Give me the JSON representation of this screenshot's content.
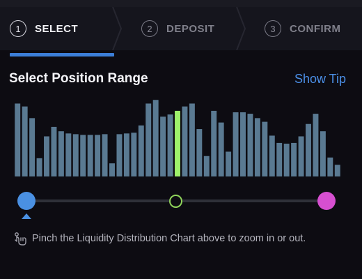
{
  "steps": [
    {
      "number": "1",
      "label": "SELECT",
      "active": true
    },
    {
      "number": "2",
      "label": "DEPOSIT",
      "active": false
    },
    {
      "number": "3",
      "label": "CONFIRM",
      "active": false
    }
  ],
  "header": {
    "title": "Select Position Range",
    "tip_label": "Show Tip"
  },
  "hint": {
    "text": "Pinch the Liquidity Distribution Chart above to zoom in or out.",
    "icon": "pinch-gesture-icon"
  },
  "colors": {
    "bar": "#5a7a92",
    "bar_selected": "#9ef06a",
    "accent": "#3c7fd8",
    "lower_handle": "#4a90e2",
    "upper_handle": "#d64fd0",
    "current_price_marker": "#8fd35a"
  },
  "chart_data": {
    "type": "bar",
    "values": [
      100,
      96,
      80,
      25,
      55,
      68,
      62,
      59,
      58,
      57,
      57,
      57,
      58,
      18,
      58,
      59,
      60,
      70,
      100,
      105,
      82,
      85,
      90,
      96,
      100,
      65,
      28,
      90,
      74,
      34,
      88,
      88,
      86,
      80,
      75,
      56,
      46,
      45,
      46,
      55,
      72,
      86,
      62,
      26,
      16
    ],
    "selected_index": 22,
    "ylim": [
      0,
      110
    ]
  }
}
